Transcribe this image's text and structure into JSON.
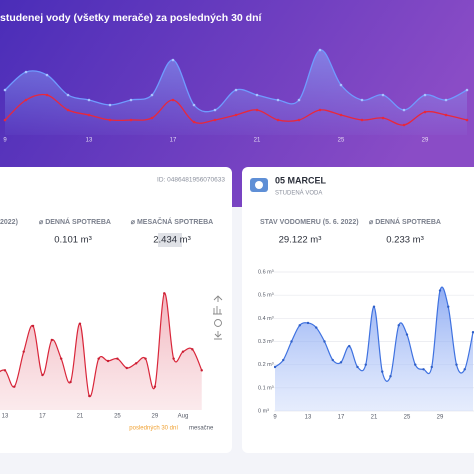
{
  "header": {
    "title": "studenej vody (všetky merače) za posledných 30 dní"
  },
  "cards": [
    {
      "id": "ID: 0486481956070633",
      "stats": [
        {
          "label": "2022)"
        },
        {
          "label": "⌀ DENNÁ SPOTREBA",
          "value": "0.101 m³"
        },
        {
          "label": "⌀ MESAČNÁ SPOTREBA",
          "value": "2.434 m³"
        }
      ],
      "legend": [
        "posledných 30 dní",
        "mesačne"
      ]
    },
    {
      "name": "05 MARCEL",
      "subtitle": "STUDENÁ VODA",
      "stats": [
        {
          "label": "STAV VODOMERU (5. 6. 2022)",
          "value": "29.122 m³"
        },
        {
          "label": "⌀ DENNÁ SPOTREBA",
          "value": "0.233 m³"
        }
      ]
    }
  ],
  "chart_data": [
    {
      "type": "line",
      "categories": [
        "9",
        null,
        null,
        null,
        "13",
        null,
        null,
        null,
        "17",
        null,
        null,
        null,
        "21",
        null,
        null,
        null,
        "25",
        null,
        null,
        null,
        "29",
        null,
        null
      ],
      "ylim": [
        0,
        100
      ],
      "series": [
        {
          "color": "#6f9bff",
          "values": [
            45,
            63,
            60,
            40,
            35,
            30,
            35,
            40,
            75,
            30,
            25,
            45,
            40,
            35,
            35,
            85,
            50,
            35,
            40,
            25,
            40,
            35,
            45
          ]
        },
        {
          "color": "#e8283c",
          "values": [
            15,
            35,
            40,
            25,
            20,
            15,
            15,
            17,
            35,
            13,
            15,
            20,
            25,
            15,
            15,
            25,
            20,
            15,
            17,
            10,
            23,
            20,
            15
          ]
        }
      ]
    },
    {
      "type": "area",
      "categories": [
        null,
        "13",
        null,
        null,
        null,
        "17",
        null,
        null,
        null,
        "21",
        null,
        null,
        null,
        "25",
        null,
        null,
        null,
        "29",
        null,
        null,
        "Aug",
        null,
        null
      ],
      "ylim": [
        0,
        0.6
      ],
      "series": [
        {
          "color": "#d9263a",
          "values": [
            0.15,
            0.17,
            0.1,
            0.25,
            0.36,
            0.15,
            0.3,
            0.22,
            0.12,
            0.37,
            0.06,
            0.22,
            0.21,
            0.22,
            0.18,
            0.2,
            0.22,
            0.1,
            0.5,
            0.22,
            0.25,
            0.26,
            0.17
          ]
        }
      ]
    },
    {
      "type": "area",
      "categories": [
        "9",
        null,
        null,
        null,
        "13",
        null,
        null,
        null,
        "17",
        null,
        null,
        null,
        "21",
        null,
        null,
        null,
        "25",
        null,
        null,
        null,
        "29",
        null,
        null,
        null,
        null
      ],
      "ylim": [
        0,
        0.6
      ],
      "yticks": [
        {
          "value": 0,
          "label": "0 m³"
        },
        {
          "value": 0.1,
          "label": "0.1 m³"
        },
        {
          "value": 0.2,
          "label": "0.2 m³"
        },
        {
          "value": 0.3,
          "label": "0.3 m³"
        },
        {
          "value": 0.4,
          "label": "0.4 m³"
        },
        {
          "value": 0.5,
          "label": "0.5 m³"
        },
        {
          "value": 0.6,
          "label": "0.6 m³"
        }
      ],
      "grid": true,
      "series": [
        {
          "color": "#3f72e0",
          "values": [
            0.19,
            0.22,
            0.3,
            0.37,
            0.38,
            0.36,
            0.3,
            0.22,
            0.21,
            0.28,
            0.19,
            0.2,
            0.45,
            0.17,
            0.15,
            0.37,
            0.33,
            0.2,
            0.18,
            0.19,
            0.52,
            0.45,
            0.2,
            0.18,
            0.34
          ]
        }
      ]
    }
  ]
}
